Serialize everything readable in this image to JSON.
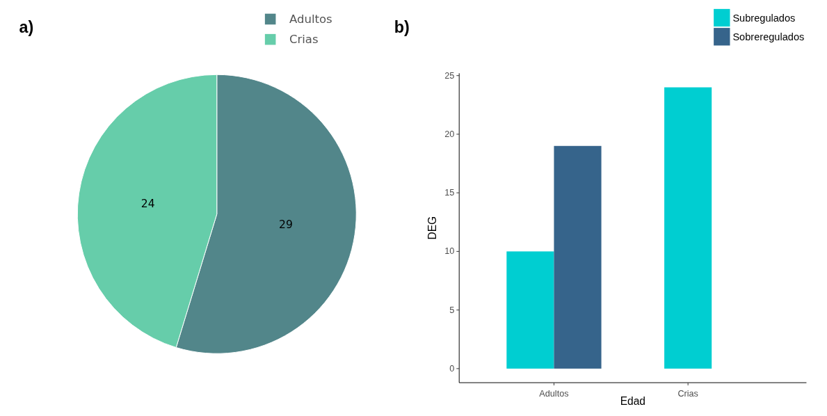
{
  "chart_data": [
    {
      "type": "pie",
      "title": "a)",
      "categories": [
        "Adultos",
        "Crias"
      ],
      "values": [
        29,
        24
      ],
      "colors": [
        "#52868a",
        "#66cdaa"
      ],
      "data_labels": true,
      "legend": "top"
    },
    {
      "type": "bar",
      "title": "b)",
      "categories": [
        "Adultos",
        "Crias"
      ],
      "xlabel": "Edad",
      "ylabel": "DEG",
      "ylim": [
        -1.2,
        25.2
      ],
      "yticks": [
        0,
        5,
        10,
        15,
        20,
        25
      ],
      "legend": "top right",
      "grid": false,
      "series": [
        {
          "name": "Subregulados",
          "color": "#00ced1",
          "values": [
            10,
            24
          ]
        },
        {
          "name": "Sobreregulados",
          "color": "#36648b",
          "values": [
            19,
            null
          ]
        }
      ]
    }
  ]
}
